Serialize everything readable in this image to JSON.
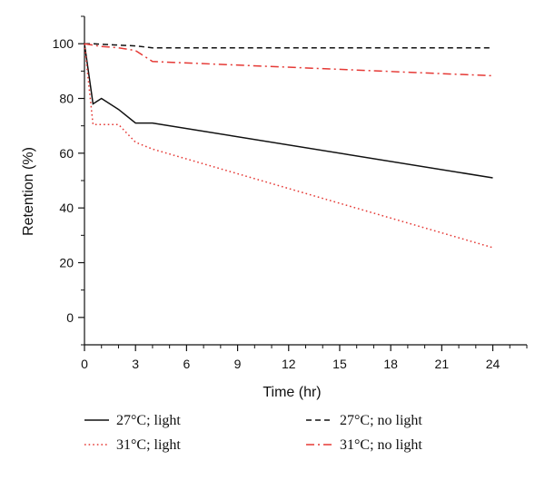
{
  "chart_data": {
    "type": "line",
    "xlabel": "Time (hr)",
    "ylabel": "Retention (%)",
    "x_ticks": [
      "0",
      "3",
      "6",
      "9",
      "12",
      "15",
      "18",
      "21",
      "24"
    ],
    "y_ticks": [
      "0",
      "20",
      "40",
      "60",
      "80",
      "100"
    ],
    "xlim": [
      0,
      26
    ],
    "ylim": [
      -10,
      110
    ],
    "grid": false,
    "legend_position": "bottom",
    "series": [
      {
        "name": "27°C; light",
        "color": "#111111",
        "dash": "solid",
        "points": [
          [
            0,
            100
          ],
          [
            0.5,
            78
          ],
          [
            1,
            80
          ],
          [
            2,
            76
          ],
          [
            3,
            71
          ],
          [
            4,
            71
          ],
          [
            24,
            51
          ]
        ]
      },
      {
        "name": "31°C; light",
        "color": "#e53935",
        "dash": "dotted",
        "points": [
          [
            0,
            100
          ],
          [
            0.5,
            70.5
          ],
          [
            1,
            70.5
          ],
          [
            2,
            70.5
          ],
          [
            3,
            64
          ],
          [
            4,
            61.5
          ],
          [
            24,
            25.5
          ]
        ]
      },
      {
        "name": "27°C; no light",
        "color": "#111111",
        "dash": "dashed",
        "points": [
          [
            0,
            100
          ],
          [
            0.5,
            100
          ],
          [
            1,
            99.8
          ],
          [
            2,
            99.5
          ],
          [
            3,
            99.2
          ],
          [
            4,
            98.5
          ],
          [
            24,
            98.5
          ]
        ]
      },
      {
        "name": "31°C; no light",
        "color": "#e53935",
        "dash": "dashdot",
        "points": [
          [
            0,
            100
          ],
          [
            0.5,
            99.5
          ],
          [
            1,
            99
          ],
          [
            2,
            98.5
          ],
          [
            3,
            97.5
          ],
          [
            4,
            93.5
          ],
          [
            24,
            88.3
          ]
        ]
      }
    ]
  }
}
